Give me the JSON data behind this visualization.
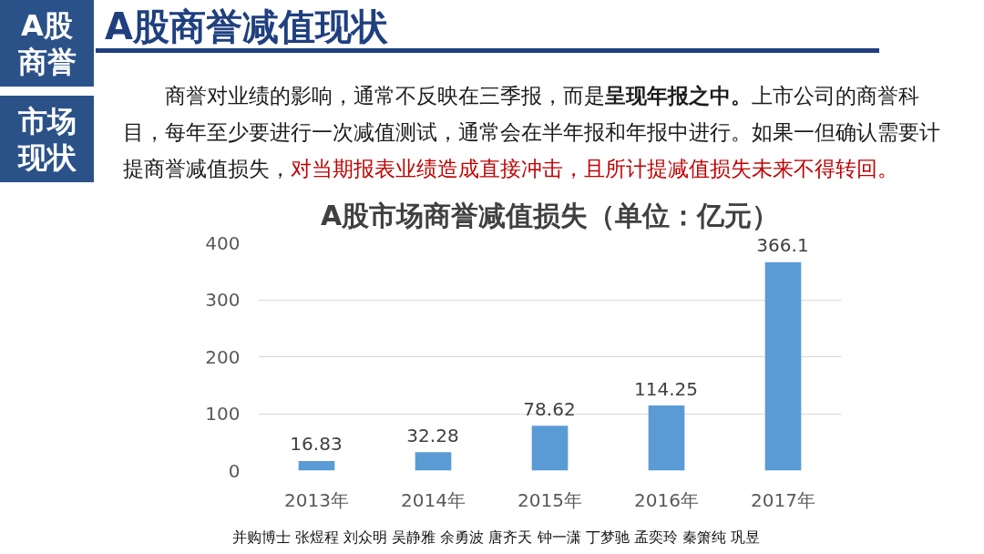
{
  "chart_data": {
    "type": "bar",
    "title": "A股市场商誉减值损失（单位：亿元）",
    "categories": [
      "2013年",
      "2014年",
      "2015年",
      "2016年",
      "2017年"
    ],
    "values": [
      16.83,
      32.28,
      78.62,
      114.25,
      366.1
    ],
    "color": "#5b9bd5",
    "ylim": [
      0,
      400
    ],
    "yticks": [
      0,
      100,
      200,
      300,
      400
    ],
    "grid": "y",
    "data_labels": true,
    "annotations": [
      "A股商誉",
      "市场现状",
      "A股商誉减值现状",
      "商誉对业绩的影响，通常不反映在三季报，而是",
      "呈现年报之中。",
      "上市公司的商誉科",
      "目，每年至少要进行一次减值测试，通常会在半年报和年报中进行。如果一但确认需要计",
      "提商誉减值损失，",
      "对当期报表业绩造成直接冲击，且所计提减值损失未来不得转回。",
      "并购博士 张煜程 刘众明 吴静雅 余勇波 唐齐天 钟一潇 丁梦驰 孟奕玲 秦箫纯 巩昱"
    ]
  }
}
